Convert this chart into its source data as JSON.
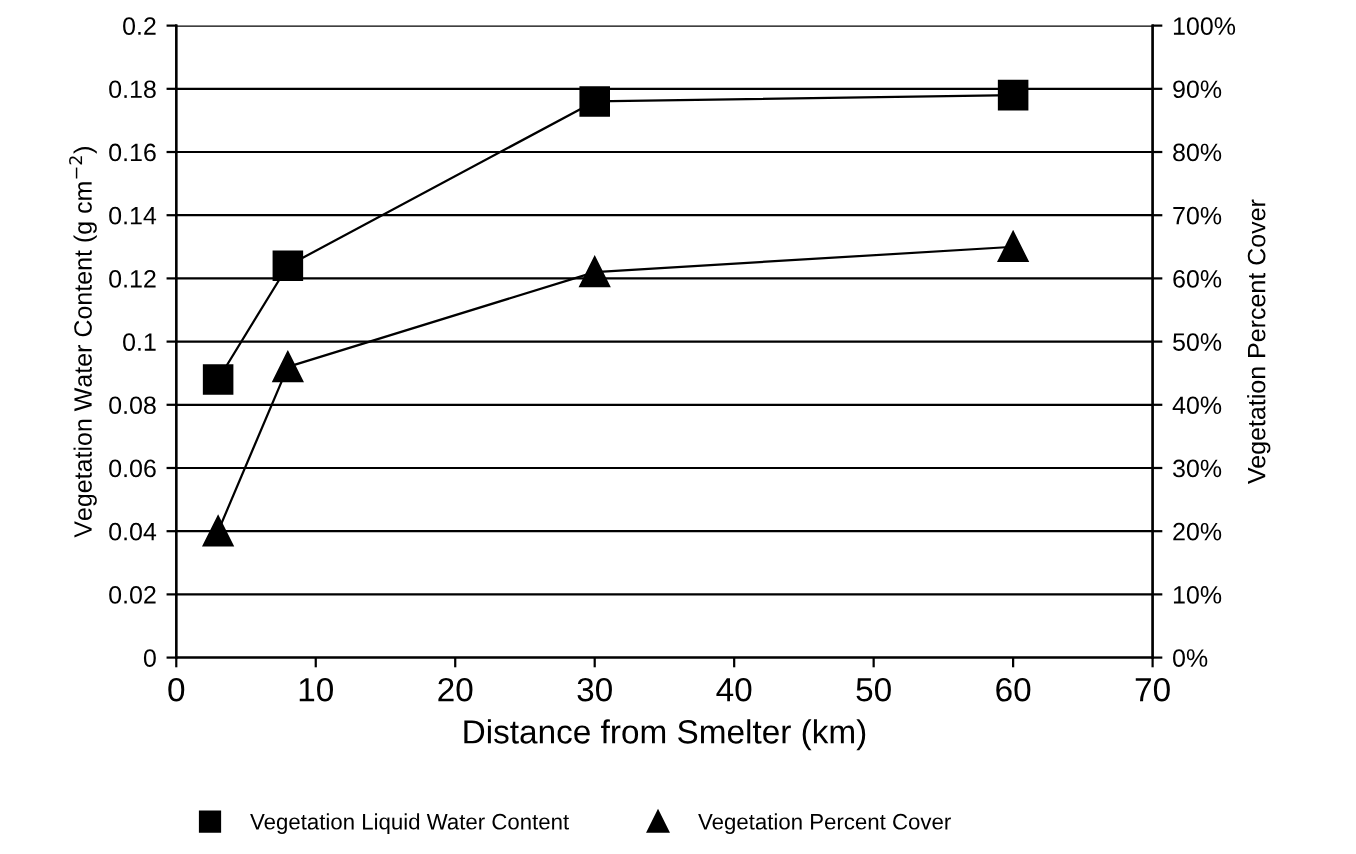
{
  "chart_data": {
    "type": "line",
    "xlabel": "Distance from Smelter (km)",
    "ylabel": "Vegetation Water Content (g cm$^{−2}$)",
    "y2label": "Vegetation Percent Cover",
    "x": [
      3,
      8,
      30,
      60
    ],
    "series": [
      {
        "name": "Vegetation Liquid Water Content",
        "color": "#000000",
        "marker": "square",
        "values": [
          0.088,
          0.124,
          0.176,
          0.178
        ]
      },
      {
        "name": "Vegetation Percent Cover",
        "color": "#000000",
        "marker": "triangle",
        "axis": "y2",
        "values": [
          20,
          46,
          61,
          65
        ]
      }
    ],
    "xlim": [
      0,
      70
    ],
    "xticks": [
      0,
      10,
      20,
      30,
      40,
      50,
      60,
      70
    ],
    "ylim": [
      0,
      0.2
    ],
    "yticks": [
      0,
      0.02,
      0.04,
      0.06,
      0.08,
      0.1,
      0.12,
      0.14,
      0.16,
      0.18,
      0.2
    ],
    "y2lim": [
      0,
      100
    ],
    "y2ticks": [
      {
        "value": 0,
        "label": "0%"
      },
      {
        "value": 10,
        "label": "10%"
      },
      {
        "value": 20,
        "label": "20%"
      },
      {
        "value": 30,
        "label": "30%"
      },
      {
        "value": 40,
        "label": "40%"
      },
      {
        "value": 50,
        "label": "50%"
      },
      {
        "value": 60,
        "label": "60%"
      },
      {
        "value": 70,
        "label": "70%"
      },
      {
        "value": 80,
        "label": "80%"
      },
      {
        "value": 90,
        "label": "90%"
      },
      {
        "value": 100,
        "label": "100%"
      }
    ],
    "grid": "y",
    "legend": "bottom",
    "line_style": "solid"
  }
}
